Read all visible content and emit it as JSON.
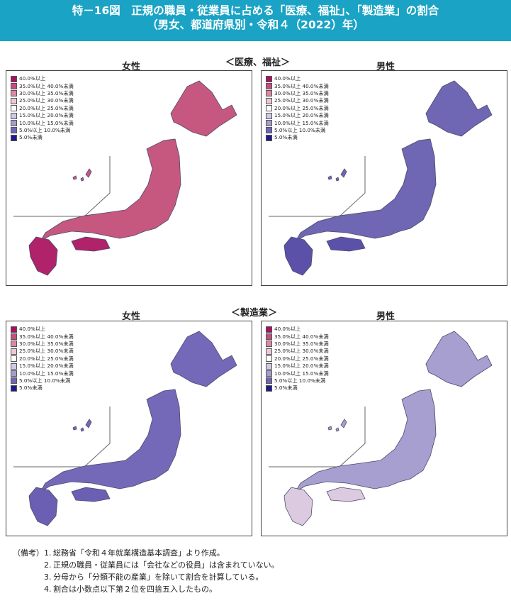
{
  "header": {
    "line1": "特－16図　正規の職員・従業員に占める「医療、福祉」、「製造業」の割合",
    "line2": "（男女、都道府県別・令和４（2022）年）"
  },
  "sections": [
    {
      "title": "＜医療、福祉＞"
    },
    {
      "title": "＜製造業＞"
    }
  ],
  "panels": [
    {
      "label": "女性",
      "fill": "#c6587f",
      "fill_south": "#b0226a"
    },
    {
      "label": "男性",
      "fill": "#6f66b4",
      "fill_south": "#5b51a8"
    },
    {
      "label": "女性",
      "fill": "#7469b8",
      "fill_south": "#6a5fb2"
    },
    {
      "label": "男性",
      "fill": "#a69fcf",
      "fill_south": "#dccbe0"
    }
  ],
  "legend": [
    {
      "label": "40.0%以上",
      "color": "#a8105e"
    },
    {
      "label": "35.0%以上 40.0%未満",
      "color": "#c54e80"
    },
    {
      "label": "30.0%以上 35.0%未満",
      "color": "#d88aa5"
    },
    {
      "label": "25.0%以上 30.0%未満",
      "color": "#ecc8d4"
    },
    {
      "label": "20.0%以上 25.0%未満",
      "color": "#ffffff"
    },
    {
      "label": "15.0%以上 20.0%未満",
      "color": "#cfcbe6"
    },
    {
      "label": "10.0%以上 15.0%未満",
      "color": "#a39dcf"
    },
    {
      "label": "5.0%以上 10.0%未満",
      "color": "#6e66b3"
    },
    {
      "label": "5.0%未満",
      "color": "#1d1a8c"
    }
  ],
  "notes": {
    "label": "（備考）",
    "items": [
      {
        "num": "1.",
        "text": "総務省「令和４年就業構造基本調査」より作成。"
      },
      {
        "num": "2.",
        "text": "正規の職員・従業員には「会社などの役員」は含まれていない。"
      },
      {
        "num": "3.",
        "text": "分母から「分類不能の産業」を除いて割合を計算している。"
      },
      {
        "num": "4.",
        "text": "割合は小数点以下第２位を四捨五入したもの。"
      }
    ]
  }
}
